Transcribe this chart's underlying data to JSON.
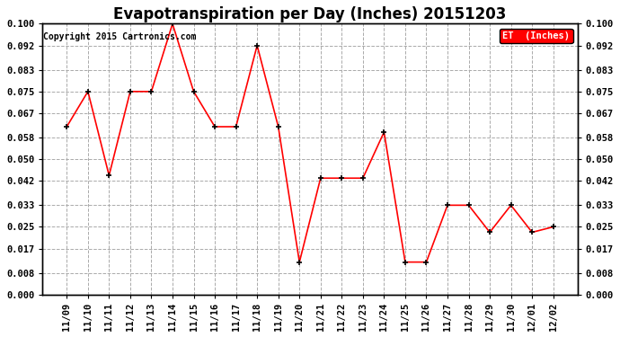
{
  "title": "Evapotranspiration per Day (Inches) 20151203",
  "copyright_text": "Copyright 2015 Cartronics.com",
  "legend_label": "ET  (Inches)",
  "dates": [
    "11/09",
    "11/10",
    "11/11",
    "11/12",
    "11/13",
    "11/14",
    "11/15",
    "11/16",
    "11/17",
    "11/18",
    "11/19",
    "11/20",
    "11/21",
    "11/22",
    "11/23",
    "11/24",
    "11/25",
    "11/26",
    "11/27",
    "11/28",
    "11/29",
    "11/30",
    "12/01",
    "12/02"
  ],
  "values": [
    0.062,
    0.075,
    0.044,
    0.075,
    0.075,
    0.1,
    0.075,
    0.062,
    0.062,
    0.092,
    0.062,
    0.012,
    0.043,
    0.043,
    0.043,
    0.06,
    0.012,
    0.012,
    0.033,
    0.033,
    0.023,
    0.033,
    0.023,
    0.025
  ],
  "ylim": [
    0.0,
    0.1
  ],
  "yticks": [
    0.0,
    0.008,
    0.017,
    0.025,
    0.033,
    0.042,
    0.05,
    0.058,
    0.067,
    0.075,
    0.083,
    0.092,
    0.1
  ],
  "line_color": "#ff0000",
  "marker_color": "#000000",
  "bg_color": "#ffffff",
  "grid_color": "#aaaaaa",
  "title_fontsize": 12,
  "copyright_fontsize": 7,
  "tick_fontsize": 7.5
}
